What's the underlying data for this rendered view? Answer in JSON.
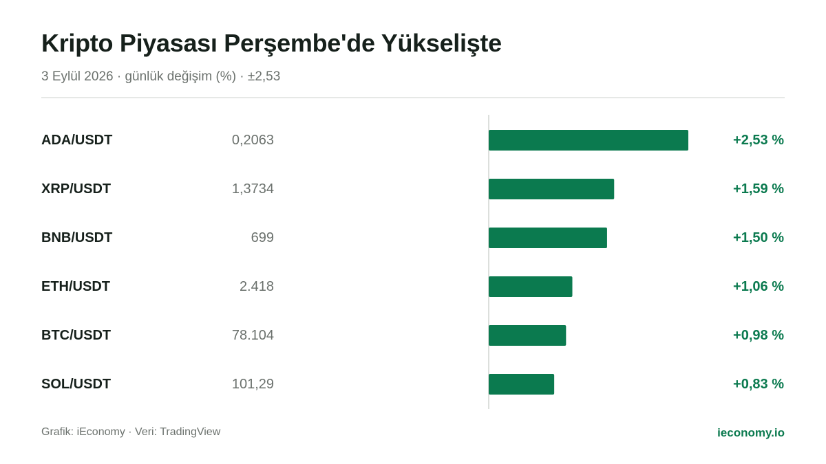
{
  "header": {
    "title": "Kripto Piyasası Perşembe'de Yükselişte",
    "subtitle": "3 Eylül 2026 · günlük değişim (%) · ±2,53"
  },
  "footer": {
    "credit": "Grafik: iEconomy · Veri: TradingView",
    "brand": "ieconomy.io"
  },
  "colors": {
    "bar": "#0b7a4f",
    "value_text": "#0b7a4f",
    "pair_text": "#16201b",
    "price_text": "#6b716d",
    "axis": "#dcdfdc"
  },
  "chart_data": {
    "type": "bar",
    "orientation": "horizontal",
    "categories": [
      "ADA/USDT",
      "XRP/USDT",
      "BNB/USDT",
      "ETH/USDT",
      "BTC/USDT",
      "SOL/USDT"
    ],
    "prices": [
      "0,2063",
      "1,3734",
      "699",
      "2.418",
      "78.104",
      "101,29"
    ],
    "values": [
      2.53,
      1.59,
      1.5,
      1.06,
      0.98,
      0.83
    ],
    "value_labels": [
      "+2,53 %",
      "+1,59 %",
      "+1,50 %",
      "+1,06 %",
      "+0,98 %",
      "+0,83 %"
    ],
    "xlim": [
      -2.53,
      2.53
    ]
  }
}
